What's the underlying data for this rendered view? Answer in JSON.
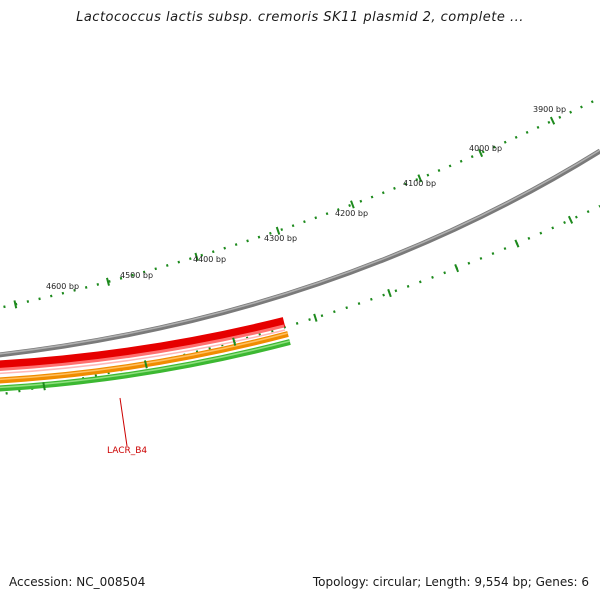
{
  "title": "Lactococcus lactis subsp. cremoris SK11 plasmid 2, complete ...",
  "accession": "Accession: NC_008504",
  "summary": "Topology: circular; Length: 9,554 bp; Genes: 6",
  "gene_label": "LACR_B4",
  "tick_labels": [
    "3900 bp",
    "4000 bp",
    "4100 bp",
    "4200 bp",
    "4300 bp",
    "4400 bp",
    "4500 bp",
    "4600 bp"
  ],
  "colors": {
    "backbone": "#8a8a8a",
    "gene_red": "#e60000",
    "gene_red_light": "#ff8080",
    "orange": "#f08c00",
    "green": "#3cb832",
    "tick_green": "#1d8a1d",
    "label_red": "#cc0000"
  }
}
